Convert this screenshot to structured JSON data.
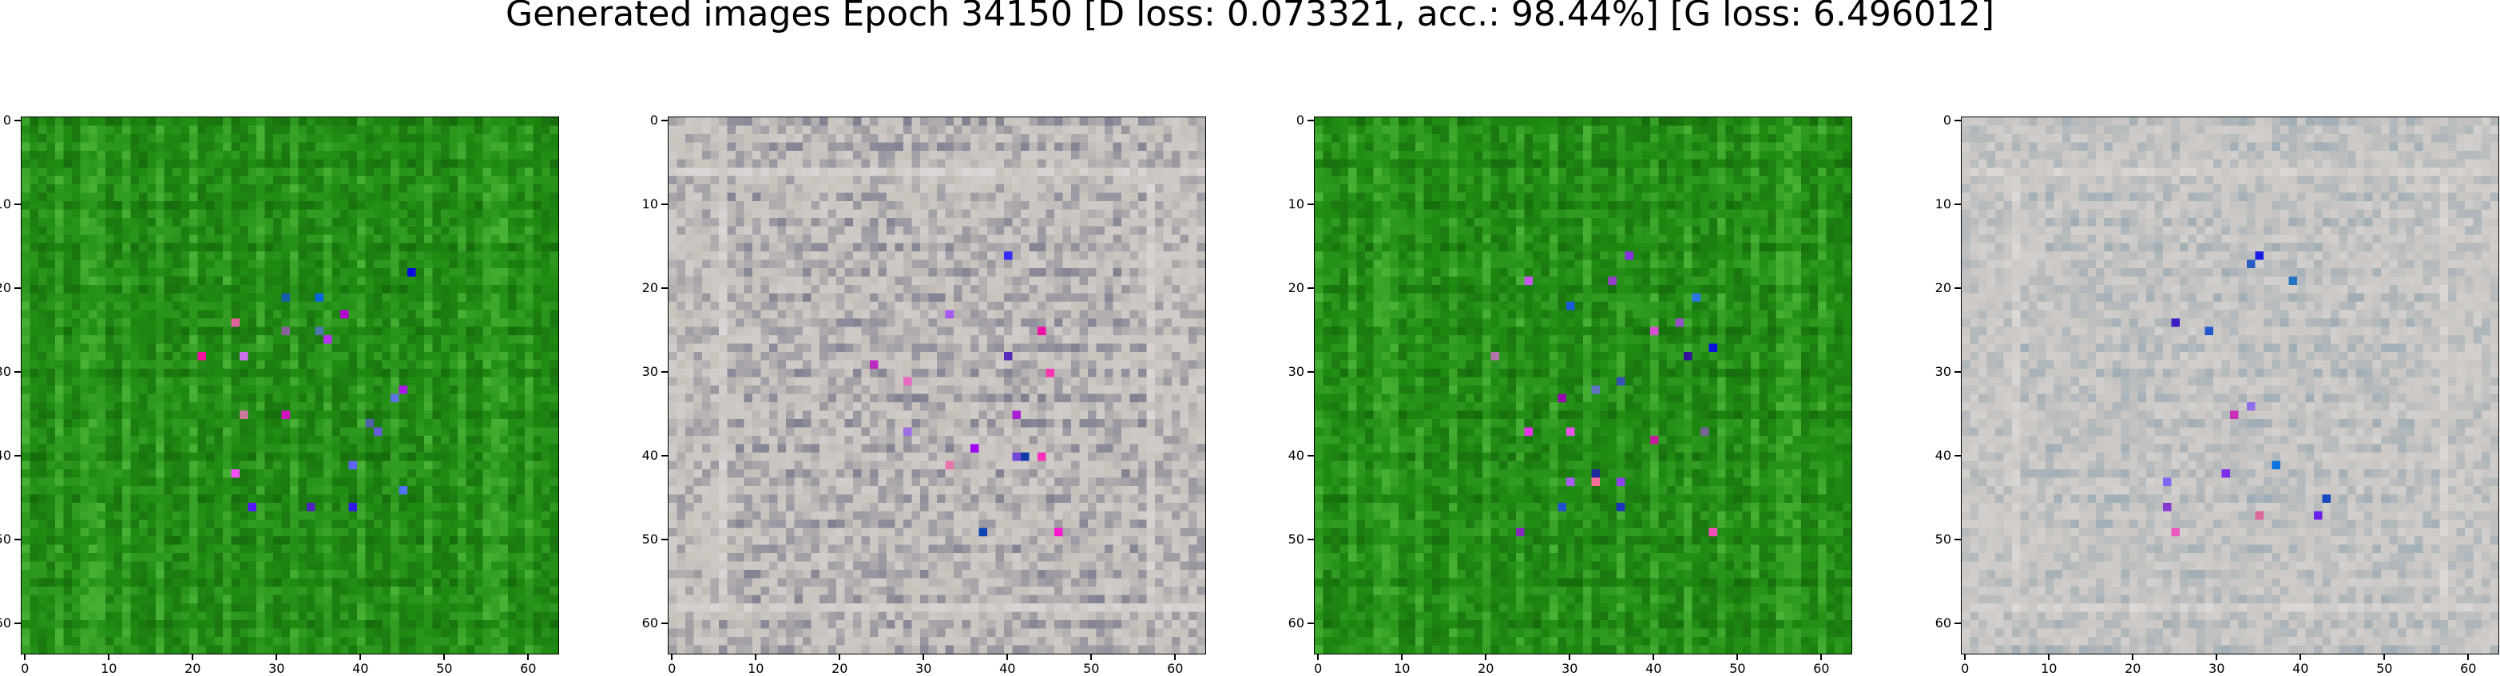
{
  "figure": {
    "title": "Generated images Epoch 34150 [D loss: 0.073321, acc.: 98.44%] [G loss: 6.496012]"
  },
  "axes": {
    "ticks": [
      "0",
      "10",
      "20",
      "30",
      "40",
      "50",
      "60"
    ]
  },
  "panels": [
    {
      "id": "img-1",
      "palette": "green",
      "colors": {
        "base": "#1f8a12",
        "dark": "#0e4d08",
        "light": "#5fc94a"
      }
    },
    {
      "id": "img-2",
      "palette": "grey",
      "colors": {
        "base": "#c8c2bd",
        "dark": "#2a2f5c",
        "light": "#e8e3e6"
      }
    },
    {
      "id": "img-3",
      "palette": "green",
      "colors": {
        "base": "#1f8a12",
        "dark": "#0e4d08",
        "light": "#5fc94a"
      }
    },
    {
      "id": "img-4",
      "palette": "grey-blue",
      "colors": {
        "base": "#c9c6c3",
        "dark": "#6f8fa6",
        "light": "#e9e6e4"
      }
    }
  ]
}
